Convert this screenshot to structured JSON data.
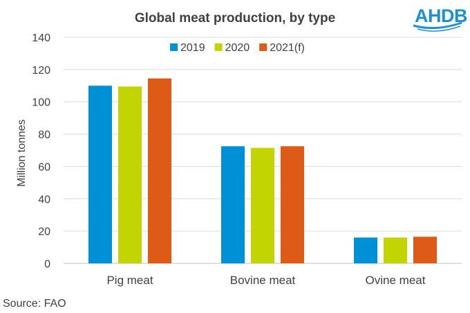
{
  "chart_data": {
    "type": "bar",
    "title": "Global  meat  production,  by  type",
    "categories": [
      "Pig meat",
      "Bovine meat",
      "Ovine meat"
    ],
    "series": [
      {
        "name": "2019",
        "color": "#0090d6",
        "values": [
          110,
          72.5,
          16
        ]
      },
      {
        "name": "2020",
        "color": "#c3d500",
        "values": [
          109.5,
          71.5,
          16
        ]
      },
      {
        "name": "2021(f)",
        "color": "#de5a17",
        "values": [
          114.5,
          72.5,
          16.5
        ]
      }
    ],
    "xlabel": "",
    "ylabel": "Million tonnes",
    "ylim": [
      0,
      140
    ],
    "yticks": [
      0,
      20,
      40,
      60,
      80,
      100,
      120,
      140
    ],
    "grid": true,
    "legend_position": "top-center"
  },
  "source": "Source: FAO",
  "logo": {
    "text": "AHDB",
    "color": "#1f8fcf"
  }
}
